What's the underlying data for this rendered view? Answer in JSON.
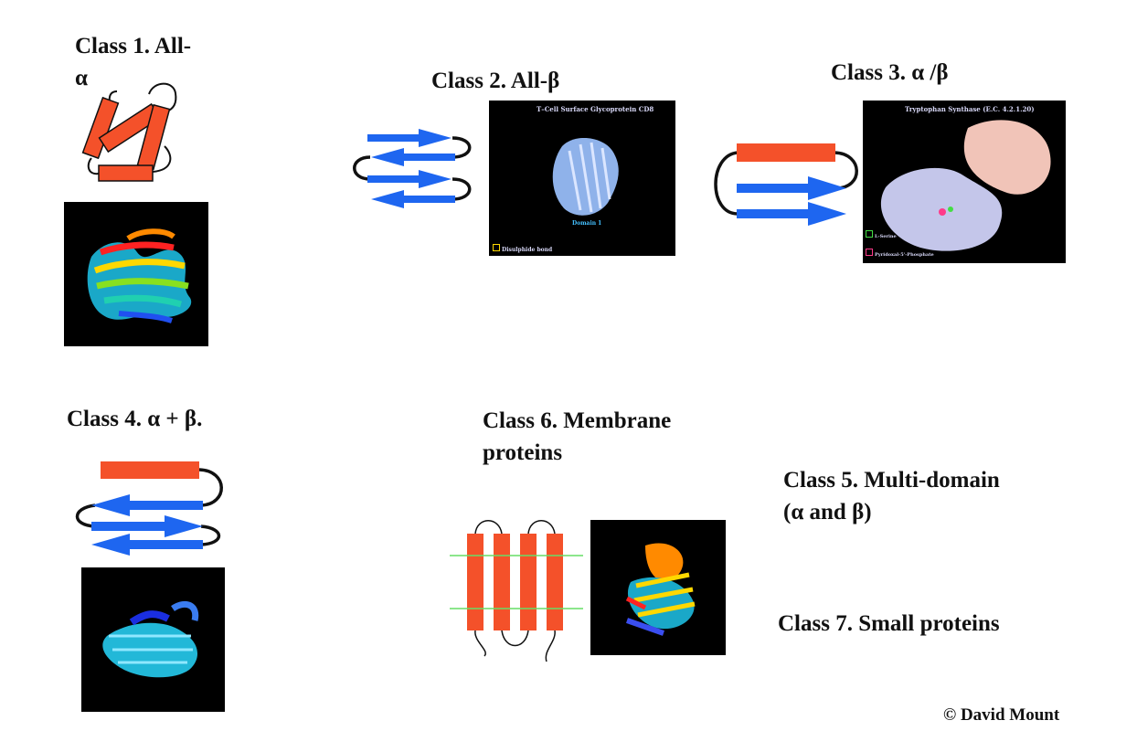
{
  "classes": {
    "c1_line1": "Class 1. All-",
    "c1_line2": "α",
    "c2": "Class 2.  All-β",
    "c3": "Class 3. α /β",
    "c4": "Class 4. α + β.",
    "c6_line1": "Class 6.  Membrane",
    "c6_line2": "proteins",
    "c5_line1": "Class 5.  Multi-domain",
    "c5_line2": "(α and β)",
    "c7": "Class 7.  Small proteins"
  },
  "images": {
    "cd8_title": "T–Cell Surface Glycoprotein  CD8",
    "cd8_domain": "Domain 1",
    "cd8_legend": "Disulphide bond",
    "trp_title": "Tryptophan Synthase (E.C. 4.2.1.20)",
    "trp_legend1": "L-Serine",
    "trp_legend2": "Pyridoxal-5'-Phosphate"
  },
  "copyright": "© David Mount",
  "colors": {
    "helix": "#f4512a",
    "strand": "#1e66f0",
    "loop": "#111111",
    "membrane_line": "#66dd66"
  }
}
